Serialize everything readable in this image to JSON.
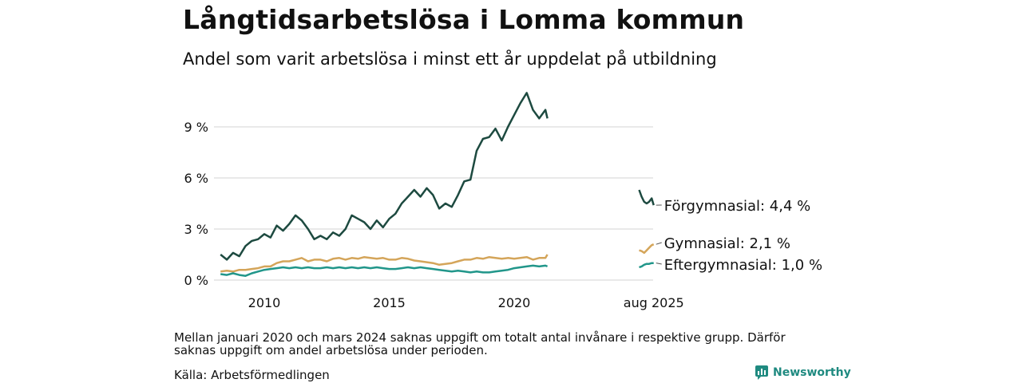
{
  "header": {
    "title": "Långtidsarbetslösa i Lomma kommun",
    "subtitle": "Andel som varit arbetslösa i minst ett år uppdelat på utbildning"
  },
  "footer": {
    "note": "Mellan januari 2020 och mars 2024 saknas uppgift om totalt antal invånare i respektive grupp. Därför saknas uppgift om andel arbetslösa under perioden.",
    "source": "Källa: Arbetsförmedlingen",
    "brand": "Newsworthy"
  },
  "chart_data": {
    "type": "line",
    "x_ticks": [
      {
        "label": "2010",
        "x": 2010.0
      },
      {
        "label": "2015",
        "x": 2015.0
      },
      {
        "label": "2020",
        "x": 2020.0
      },
      {
        "label": "aug 2025",
        "x": 2025.583
      }
    ],
    "y_ticks": [
      {
        "label": "0 %",
        "y": 0
      },
      {
        "label": "3 %",
        "y": 3
      },
      {
        "label": "6 %",
        "y": 6
      },
      {
        "label": "9 %",
        "y": 9
      }
    ],
    "ylim": [
      0,
      11
    ],
    "grid": "horizontal",
    "colors": {
      "forgymnasial": "#1d4a40",
      "gymnasial": "#d4a55a",
      "eftergymnasial": "#21968a"
    },
    "series": [
      {
        "key": "forgymnasial",
        "name": "Förgymnasial",
        "end_label": "Förgymnasial: 4,4 %",
        "color": "#1d4a40",
        "segments": [
          [
            [
              2008.25,
              1.5
            ],
            [
              2008.5,
              1.2
            ],
            [
              2008.75,
              1.6
            ],
            [
              2009.0,
              1.4
            ],
            [
              2009.25,
              2.0
            ],
            [
              2009.5,
              2.3
            ],
            [
              2009.75,
              2.4
            ],
            [
              2010.0,
              2.7
            ],
            [
              2010.25,
              2.5
            ],
            [
              2010.5,
              3.2
            ],
            [
              2010.75,
              2.9
            ],
            [
              2011.0,
              3.3
            ],
            [
              2011.25,
              3.8
            ],
            [
              2011.5,
              3.5
            ],
            [
              2011.75,
              3.0
            ],
            [
              2012.0,
              2.4
            ],
            [
              2012.25,
              2.6
            ],
            [
              2012.5,
              2.4
            ],
            [
              2012.75,
              2.8
            ],
            [
              2013.0,
              2.6
            ],
            [
              2013.25,
              3.0
            ],
            [
              2013.5,
              3.8
            ],
            [
              2013.75,
              3.6
            ],
            [
              2014.0,
              3.4
            ],
            [
              2014.25,
              3.0
            ],
            [
              2014.5,
              3.5
            ],
            [
              2014.75,
              3.1
            ],
            [
              2015.0,
              3.6
            ],
            [
              2015.25,
              3.9
            ],
            [
              2015.5,
              4.5
            ],
            [
              2015.75,
              4.9
            ],
            [
              2016.0,
              5.3
            ],
            [
              2016.25,
              4.9
            ],
            [
              2016.5,
              5.4
            ],
            [
              2016.75,
              5.0
            ],
            [
              2017.0,
              4.2
            ],
            [
              2017.25,
              4.5
            ],
            [
              2017.5,
              4.3
            ],
            [
              2017.75,
              5.0
            ],
            [
              2018.0,
              5.8
            ],
            [
              2018.25,
              5.9
            ],
            [
              2018.5,
              7.6
            ],
            [
              2018.75,
              8.3
            ],
            [
              2019.0,
              8.4
            ],
            [
              2019.25,
              8.9
            ],
            [
              2019.5,
              8.2
            ],
            [
              2019.75,
              9.0
            ],
            [
              2020.0,
              9.7
            ],
            [
              2020.25,
              10.4
            ],
            [
              2020.5,
              11.0
            ],
            [
              2020.75,
              10.0
            ],
            [
              2021.0,
              9.5
            ],
            [
              2021.25,
              10.0
            ],
            [
              2021.33,
              9.5
            ]
          ],
          [
            [
              2025.0,
              5.3
            ],
            [
              2025.1,
              4.9
            ],
            [
              2025.2,
              4.6
            ],
            [
              2025.3,
              4.5
            ],
            [
              2025.4,
              4.6
            ],
            [
              2025.5,
              4.8
            ],
            [
              2025.583,
              4.4
            ]
          ]
        ]
      },
      {
        "key": "gymnasial",
        "name": "Gymnasial",
        "end_label": "Gymnasial: 2,1 %",
        "color": "#d4a55a",
        "segments": [
          [
            [
              2008.25,
              0.5
            ],
            [
              2008.5,
              0.55
            ],
            [
              2008.75,
              0.5
            ],
            [
              2009.0,
              0.6
            ],
            [
              2009.25,
              0.6
            ],
            [
              2009.5,
              0.65
            ],
            [
              2009.75,
              0.7
            ],
            [
              2010.0,
              0.8
            ],
            [
              2010.25,
              0.8
            ],
            [
              2010.5,
              1.0
            ],
            [
              2010.75,
              1.1
            ],
            [
              2011.0,
              1.1
            ],
            [
              2011.25,
              1.2
            ],
            [
              2011.5,
              1.3
            ],
            [
              2011.75,
              1.1
            ],
            [
              2012.0,
              1.2
            ],
            [
              2012.25,
              1.2
            ],
            [
              2012.5,
              1.1
            ],
            [
              2012.75,
              1.25
            ],
            [
              2013.0,
              1.3
            ],
            [
              2013.25,
              1.2
            ],
            [
              2013.5,
              1.3
            ],
            [
              2013.75,
              1.25
            ],
            [
              2014.0,
              1.35
            ],
            [
              2014.25,
              1.3
            ],
            [
              2014.5,
              1.25
            ],
            [
              2014.75,
              1.3
            ],
            [
              2015.0,
              1.2
            ],
            [
              2015.25,
              1.2
            ],
            [
              2015.5,
              1.3
            ],
            [
              2015.75,
              1.25
            ],
            [
              2016.0,
              1.15
            ],
            [
              2016.25,
              1.1
            ],
            [
              2016.5,
              1.05
            ],
            [
              2016.75,
              1.0
            ],
            [
              2017.0,
              0.9
            ],
            [
              2017.25,
              0.95
            ],
            [
              2017.5,
              1.0
            ],
            [
              2017.75,
              1.1
            ],
            [
              2018.0,
              1.2
            ],
            [
              2018.25,
              1.2
            ],
            [
              2018.5,
              1.3
            ],
            [
              2018.75,
              1.25
            ],
            [
              2019.0,
              1.35
            ],
            [
              2019.25,
              1.3
            ],
            [
              2019.5,
              1.25
            ],
            [
              2019.75,
              1.3
            ],
            [
              2020.0,
              1.25
            ],
            [
              2020.25,
              1.3
            ],
            [
              2020.5,
              1.35
            ],
            [
              2020.75,
              1.2
            ],
            [
              2021.0,
              1.3
            ],
            [
              2021.25,
              1.3
            ],
            [
              2021.33,
              1.5
            ]
          ],
          [
            [
              2025.0,
              1.75
            ],
            [
              2025.1,
              1.7
            ],
            [
              2025.2,
              1.6
            ],
            [
              2025.3,
              1.75
            ],
            [
              2025.4,
              1.9
            ],
            [
              2025.5,
              2.05
            ],
            [
              2025.583,
              2.1
            ]
          ]
        ]
      },
      {
        "key": "eftergymnasial",
        "name": "Eftergymnasial",
        "end_label": "Eftergymnasial: 1,0 %",
        "color": "#21968a",
        "segments": [
          [
            [
              2008.25,
              0.35
            ],
            [
              2008.5,
              0.3
            ],
            [
              2008.75,
              0.4
            ],
            [
              2009.0,
              0.3
            ],
            [
              2009.25,
              0.25
            ],
            [
              2009.5,
              0.4
            ],
            [
              2009.75,
              0.5
            ],
            [
              2010.0,
              0.6
            ],
            [
              2010.25,
              0.65
            ],
            [
              2010.5,
              0.7
            ],
            [
              2010.75,
              0.75
            ],
            [
              2011.0,
              0.7
            ],
            [
              2011.25,
              0.75
            ],
            [
              2011.5,
              0.7
            ],
            [
              2011.75,
              0.75
            ],
            [
              2012.0,
              0.7
            ],
            [
              2012.25,
              0.7
            ],
            [
              2012.5,
              0.75
            ],
            [
              2012.75,
              0.7
            ],
            [
              2013.0,
              0.75
            ],
            [
              2013.25,
              0.7
            ],
            [
              2013.5,
              0.75
            ],
            [
              2013.75,
              0.7
            ],
            [
              2014.0,
              0.75
            ],
            [
              2014.25,
              0.7
            ],
            [
              2014.5,
              0.75
            ],
            [
              2014.75,
              0.7
            ],
            [
              2015.0,
              0.65
            ],
            [
              2015.25,
              0.65
            ],
            [
              2015.5,
              0.7
            ],
            [
              2015.75,
              0.75
            ],
            [
              2016.0,
              0.7
            ],
            [
              2016.25,
              0.75
            ],
            [
              2016.5,
              0.7
            ],
            [
              2016.75,
              0.65
            ],
            [
              2017.0,
              0.6
            ],
            [
              2017.25,
              0.55
            ],
            [
              2017.5,
              0.5
            ],
            [
              2017.75,
              0.55
            ],
            [
              2018.0,
              0.5
            ],
            [
              2018.25,
              0.45
            ],
            [
              2018.5,
              0.5
            ],
            [
              2018.75,
              0.45
            ],
            [
              2019.0,
              0.45
            ],
            [
              2019.25,
              0.5
            ],
            [
              2019.5,
              0.55
            ],
            [
              2019.75,
              0.6
            ],
            [
              2020.0,
              0.7
            ],
            [
              2020.25,
              0.75
            ],
            [
              2020.5,
              0.8
            ],
            [
              2020.75,
              0.85
            ],
            [
              2021.0,
              0.8
            ],
            [
              2021.25,
              0.85
            ],
            [
              2021.33,
              0.8
            ]
          ],
          [
            [
              2025.0,
              0.75
            ],
            [
              2025.1,
              0.8
            ],
            [
              2025.2,
              0.9
            ],
            [
              2025.3,
              0.95
            ],
            [
              2025.4,
              0.95
            ],
            [
              2025.5,
              1.0
            ],
            [
              2025.583,
              1.0
            ]
          ]
        ]
      }
    ]
  }
}
